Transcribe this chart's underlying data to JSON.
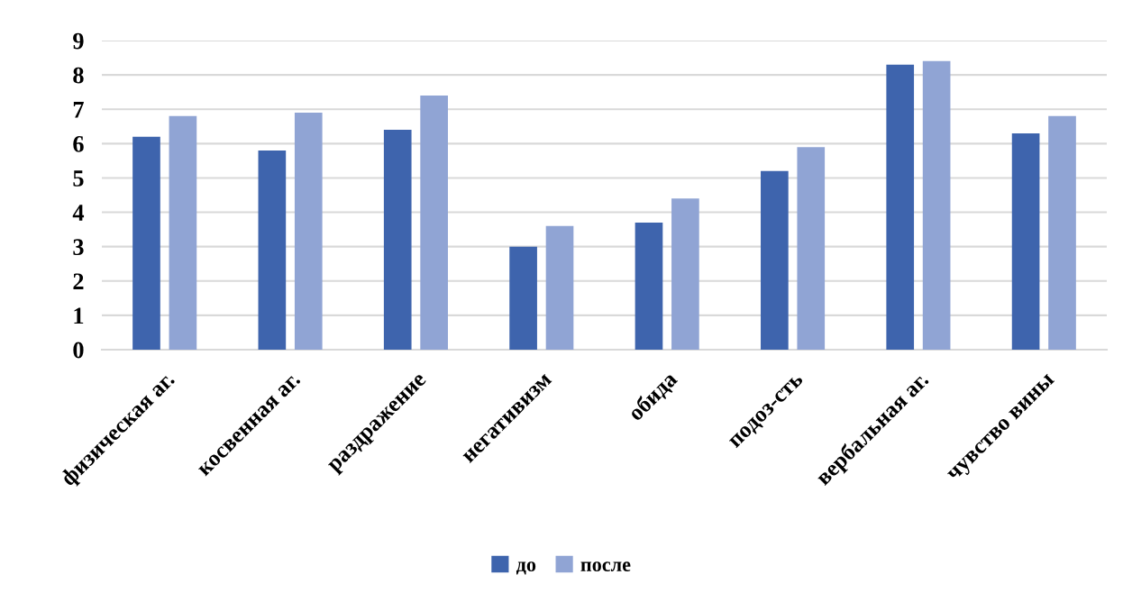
{
  "chart_data": {
    "type": "bar",
    "categories": [
      "физическая аг.",
      "косвенная аг.",
      "раздражение",
      "негативизм",
      "обида",
      "подоз-сть",
      "вербальная аг.",
      "чувство вины"
    ],
    "series": [
      {
        "name": "до",
        "color": "#3e64ad",
        "values": [
          6.2,
          5.8,
          6.4,
          3.0,
          3.7,
          5.2,
          8.3,
          6.3
        ]
      },
      {
        "name": "после",
        "color": "#90a4d4",
        "values": [
          6.8,
          6.9,
          7.4,
          3.6,
          4.4,
          5.9,
          8.4,
          6.8
        ]
      }
    ],
    "ylim": [
      0,
      9
    ],
    "yticks": [
      0,
      1,
      2,
      3,
      4,
      5,
      6,
      7,
      8,
      9
    ],
    "grid": "y",
    "legend": "bottom"
  }
}
